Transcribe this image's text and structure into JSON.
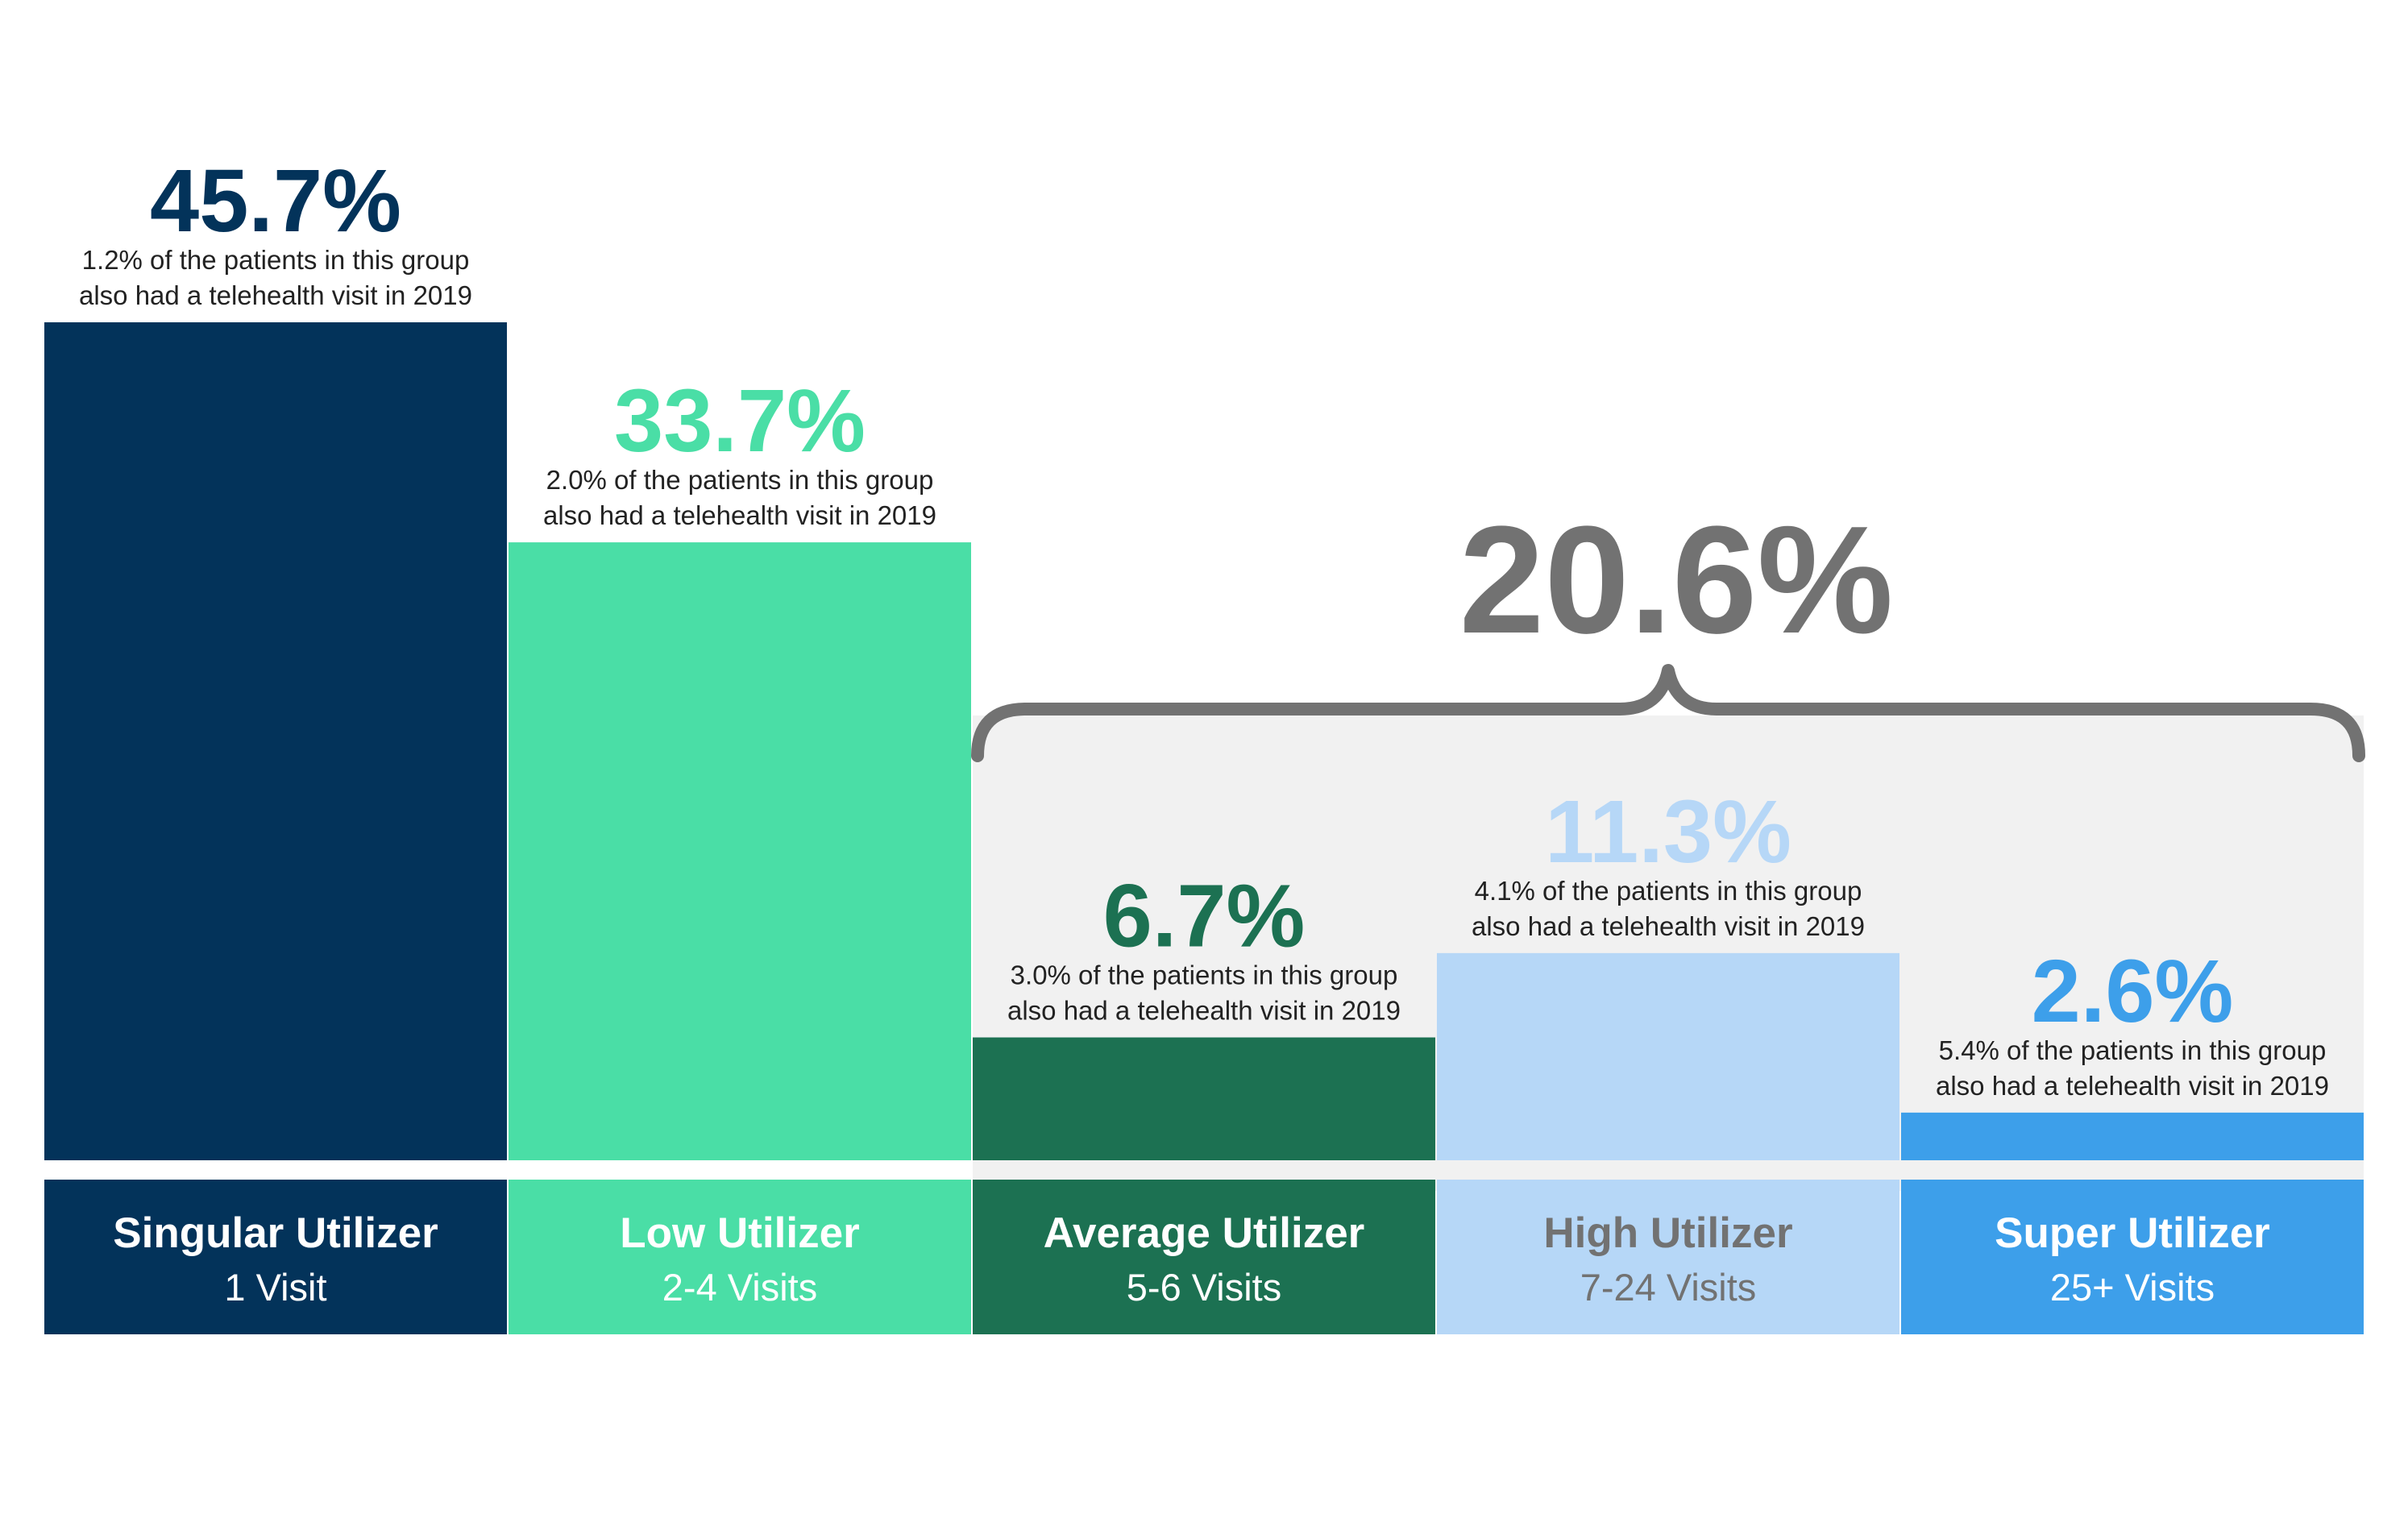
{
  "chart_data": {
    "type": "bar",
    "categories": [
      "Singular Utilizer",
      "Low Utilizer",
      "Average Utilizer",
      "High Utilizer",
      "Super Utilizer"
    ],
    "visits": [
      "1 Visit",
      "2-4 Visits",
      "5-6 Visits",
      "7-24 Visits",
      "25+ Visits"
    ],
    "values": [
      45.7,
      33.7,
      6.7,
      11.3,
      2.6
    ],
    "value_labels": [
      "45.7%",
      "33.7%",
      "6.7%",
      "11.3%",
      "2.6%"
    ],
    "notes": [
      [
        "1.2% of the patients in this group",
        "also had a telehealth visit in 2019"
      ],
      [
        "2.0% of the patients in this group",
        "also had a telehealth visit in 2019"
      ],
      [
        "3.0% of the patients in this group",
        "also had a telehealth visit in 2019"
      ],
      [
        "4.1% of the patients in this group",
        "also had a telehealth visit in 2019"
      ],
      [
        "5.4% of the patients in this group",
        "also had a telehealth visit in 2019"
      ]
    ],
    "colors": [
      "#03335a",
      "#4adea6",
      "#1c7152",
      "#b6d7f7",
      "#3d9fea"
    ],
    "value_label_colors": [
      "#03335a",
      "#4adea6",
      "#1c7152",
      "#b6d7f7",
      "#3d9fea"
    ],
    "category_text_colors": [
      "#ffffff",
      "#ffffff",
      "#ffffff",
      "#727272",
      "#ffffff"
    ],
    "group_bracket": {
      "label": "20.6%",
      "covers": [
        "Average Utilizer",
        "High Utilizer",
        "Super Utilizer"
      ],
      "color": "#727272",
      "background": "#f1f1f1"
    },
    "title": "",
    "xlabel": "",
    "ylabel": "",
    "ylim": [
      0,
      45.7
    ],
    "grid": false,
    "legend": "none"
  }
}
